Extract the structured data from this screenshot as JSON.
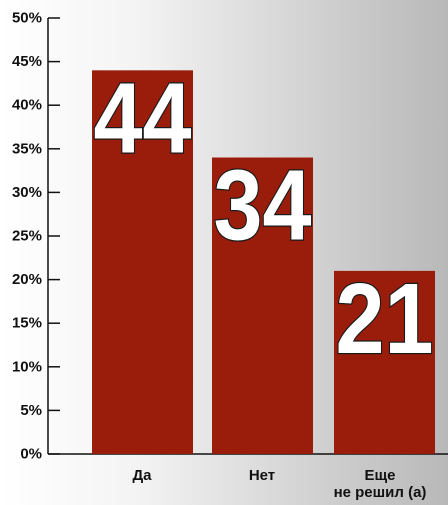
{
  "chart_data": {
    "type": "bar",
    "categories": [
      "Да",
      "Нет",
      "Еще не решил (а)"
    ],
    "category_lines": [
      [
        "Да"
      ],
      [
        "Нет"
      ],
      [
        "Еще",
        "не решил (а)"
      ]
    ],
    "values": [
      44,
      34,
      21
    ],
    "data_labels": [
      "44",
      "34",
      "21"
    ],
    "y_ticks": [
      0,
      5,
      10,
      15,
      20,
      25,
      30,
      35,
      40,
      45,
      50
    ],
    "y_tick_labels": [
      "0%",
      "5%",
      "10%",
      "15%",
      "20%",
      "25%",
      "30%",
      "35%",
      "40%",
      "45%",
      "50%"
    ],
    "ylim": [
      0,
      50
    ],
    "title": "",
    "xlabel": "",
    "ylabel": "",
    "grid": false,
    "legend": "none",
    "colors": {
      "bar": "#9a1d0c",
      "axis": "#111111",
      "value_label_fill": "#ffffff",
      "value_label_stroke": "#1a1a1a"
    }
  }
}
